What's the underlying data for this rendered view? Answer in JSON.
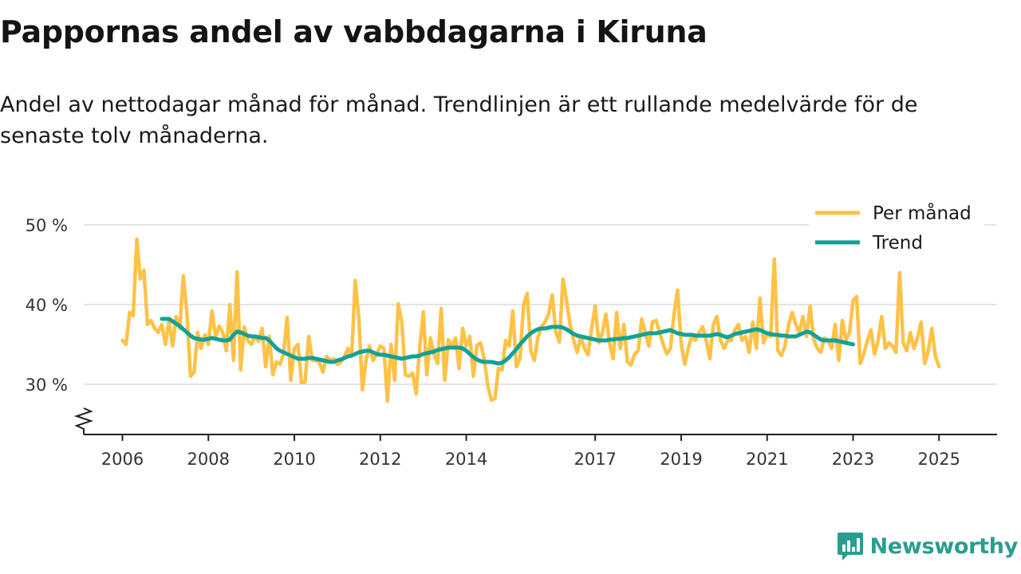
{
  "title": "Pappornas andel av vabbdagarna i Kiruna",
  "subtitle": "Andel av nettodagar månad för månad. Trendlinjen är ett rullande medelvärde för de senaste tolv månaderna.",
  "brand": {
    "name": "Newsworthy",
    "icon": "newsworthy-logo-icon"
  },
  "colors": {
    "monthly": "#FFC247",
    "trend": "#14A196",
    "grid": "#dcdcdc",
    "axis": "#222222",
    "brand": "#2a9d8f"
  },
  "chart_data": {
    "type": "line",
    "y_ticks": [
      30,
      40,
      50
    ],
    "y_tick_labels": [
      "30 %",
      "40 %",
      "50 %"
    ],
    "ylim": [
      24,
      52
    ],
    "y_axis_break": true,
    "x_ticks": [
      2006,
      2008,
      2010,
      2012,
      2014,
      2017,
      2019,
      2021,
      2023,
      2025
    ],
    "x_tick_labels": [
      "2006",
      "2008",
      "2010",
      "2012",
      "2014",
      "2017",
      "2019",
      "2021",
      "2023",
      "2025"
    ],
    "legend": [
      "Per månad",
      "Trend"
    ],
    "legend_position": "top-right",
    "series": [
      {
        "name": "Per månad",
        "x_start": 2006.0,
        "step": 0.08333,
        "values": [
          35.5,
          35,
          39,
          38.6,
          48.2,
          43.2,
          44.3,
          37.5,
          38,
          37,
          36.5,
          37.5,
          35,
          38,
          34.8,
          38.5,
          37,
          43.6,
          39,
          31,
          31.5,
          36.5,
          34.5,
          36.2,
          35,
          39.2,
          36,
          37.3,
          36.5,
          34.2,
          40,
          33,
          44.1,
          31.8,
          37.2,
          35.5,
          35,
          36,
          35.4,
          37,
          32.2,
          36,
          31.2,
          32.8,
          32.5,
          33.8,
          38.4,
          30.5,
          34.5,
          35,
          30.2,
          30.3,
          36,
          33,
          33,
          32.7,
          31.5,
          33.5,
          33,
          33.2,
          32.5,
          32.8,
          33.5,
          34.5,
          33.6,
          43,
          38.5,
          29.3,
          33,
          34.8,
          33,
          33.8,
          34.8,
          34.5,
          27.9,
          35,
          30.5,
          40.1,
          37.8,
          31.2,
          31,
          31.4,
          28.8,
          34.6,
          39.1,
          31.2,
          35.8,
          33.8,
          32.6,
          39.5,
          30.5,
          35.6,
          34.8,
          35.8,
          32,
          37,
          34.8,
          36,
          31,
          34.9,
          35.2,
          33.2,
          29.8,
          28,
          28.2,
          32,
          31.8,
          35.5,
          34.8,
          39.2,
          32.2,
          33.2,
          40,
          41.4,
          34.2,
          33,
          35.8,
          37.2,
          37.8,
          38.8,
          41.2,
          36.5,
          35.3,
          43.2,
          40.5,
          37.5,
          35.5,
          34,
          36,
          34.5,
          33.7,
          37,
          39.8,
          35.2,
          36.5,
          38.8,
          35.2,
          33.2,
          39,
          34.5,
          37.5,
          32.8,
          32.4,
          33.8,
          34.2,
          38.2,
          36.5,
          34.8,
          37.8,
          38,
          36.5,
          35,
          33.8,
          34.5,
          38.8,
          41.8,
          35.2,
          32.5,
          34.5,
          36.2,
          35.5,
          36.5,
          37.2,
          35.5,
          33.2,
          37.5,
          38.5,
          35.5,
          34.5,
          35.5,
          35.5,
          36.8,
          37.5,
          35.5,
          36,
          34,
          37.8,
          34.5,
          40.8,
          35.2,
          36.3,
          36,
          45.7,
          34.2,
          33.6,
          34.8,
          37.4,
          39,
          37.5,
          36.5,
          38.5,
          36,
          39.8,
          35.6,
          34.5,
          34,
          35.8,
          35.5,
          34.5,
          37.5,
          33,
          38,
          35.5,
          36.5,
          40.5,
          41,
          32.6,
          33.8,
          35.5,
          36.8,
          33.8,
          35.5,
          38.5,
          34.5,
          35.2,
          34.8,
          34,
          44,
          35.2,
          34.2,
          36.5,
          34.5,
          35.8,
          37.8,
          32.6,
          34.2,
          37,
          33.5,
          32.2
        ]
      },
      {
        "name": "Trend",
        "x_start": 2006.917,
        "step": 0.08333,
        "values": [
          38.2,
          38.2,
          38.2,
          37.9,
          37.6,
          37.3,
          36.9,
          36.5,
          36.1,
          35.8,
          35.7,
          35.6,
          35.6,
          35.7,
          35.8,
          35.7,
          35.6,
          35.5,
          35.5,
          35.6,
          36.2,
          36.6,
          36.5,
          36.3,
          36.1,
          36,
          36,
          35.9,
          35.8,
          35.8,
          35.5,
          35,
          34.5,
          34.2,
          34,
          33.8,
          33.6,
          33.4,
          33.2,
          33.2,
          33.2,
          33.3,
          33.3,
          33.2,
          33.1,
          33,
          32.9,
          32.8,
          32.8,
          33,
          33.1,
          33.3,
          33.5,
          33.6,
          33.8,
          34,
          34.1,
          34.2,
          34.2,
          34,
          33.8,
          33.7,
          33.7,
          33.6,
          33.5,
          33.4,
          33.3,
          33.2,
          33.3,
          33.4,
          33.5,
          33.5,
          33.6,
          33.8,
          33.9,
          34,
          34.1,
          34.3,
          34.4,
          34.5,
          34.6,
          34.6,
          34.6,
          34.6,
          34.5,
          34.2,
          33.8,
          33.4,
          33.1,
          32.9,
          32.8,
          32.8,
          32.8,
          32.7,
          32.6,
          32.7,
          33,
          33.4,
          33.9,
          34.4,
          35,
          35.5,
          36,
          36.4,
          36.7,
          36.9,
          37,
          37,
          37.1,
          37.2,
          37.2,
          37.2,
          37.1,
          36.9,
          36.6,
          36.3,
          36.1,
          36,
          35.9,
          35.8,
          35.7,
          35.6,
          35.5,
          35.5,
          35.5,
          35.6,
          35.6,
          35.7,
          35.7,
          35.8,
          35.8,
          35.9,
          36,
          36.1,
          36.2,
          36.3,
          36.4,
          36.4,
          36.4,
          36.5,
          36.6,
          36.7,
          36.8,
          36.6,
          36.4,
          36.3,
          36.2,
          36.2,
          36.2,
          36.1,
          36.1,
          36.1,
          36.1,
          36.1,
          36.2,
          36.3,
          36.2,
          36,
          35.9,
          36.1,
          36.3,
          36.4,
          36.5,
          36.6,
          36.7,
          36.8,
          36.9,
          36.8,
          36.6,
          36.4,
          36.3,
          36.2,
          36.2,
          36.1,
          36.1,
          36,
          36,
          36,
          36.2,
          36.4,
          36.6,
          36.5,
          36.2,
          35.9,
          35.6,
          35.5,
          35.5,
          35.5,
          35.5,
          35.4,
          35.3,
          35.2,
          35.1,
          35
        ]
      }
    ]
  }
}
